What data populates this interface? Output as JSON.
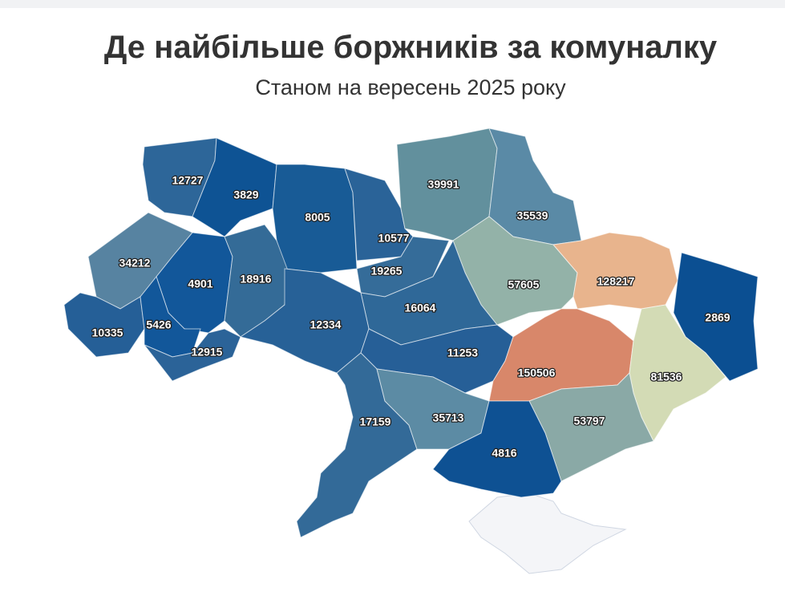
{
  "chart_data": {
    "type": "choropleth",
    "title": "Де найбільше боржників за комуналку",
    "subtitle": "Станом на вересень 2025 року",
    "regions": [
      {
        "value": 12727,
        "color": "#2d6699"
      },
      {
        "value": 3829,
        "color": "#0e5394"
      },
      {
        "value": 8005,
        "color": "#185b96"
      },
      {
        "value": 10577,
        "color": "#2a6398"
      },
      {
        "value": 39991,
        "color": "#62909d"
      },
      {
        "value": 35539,
        "color": "#5a8aa6"
      },
      {
        "value": 34212,
        "color": "#5783a1"
      },
      {
        "value": 4901,
        "color": "#12579a"
      },
      {
        "value": 18916,
        "color": "#346b97"
      },
      {
        "value": 19265,
        "color": "#356c99"
      },
      {
        "value": 57605,
        "color": "#93b2a8"
      },
      {
        "value": 128217,
        "color": "#e8b48d"
      },
      {
        "value": 16064,
        "color": "#2f6898"
      },
      {
        "value": 2869,
        "color": "#0b4f92"
      },
      {
        "value": 10335,
        "color": "#255f97"
      },
      {
        "value": 5426,
        "color": "#12579a"
      },
      {
        "value": 12915,
        "color": "#2b6398"
      },
      {
        "value": 12334,
        "color": "#276197"
      },
      {
        "value": 11253,
        "color": "#265f97"
      },
      {
        "value": 150506,
        "color": "#d8876a"
      },
      {
        "value": 81536,
        "color": "#d3dbb5"
      },
      {
        "value": 17159,
        "color": "#336a98"
      },
      {
        "value": 35713,
        "color": "#5c8ba4"
      },
      {
        "value": 53797,
        "color": "#8aa9a6"
      },
      {
        "value": 4816,
        "color": "#0e5193"
      }
    ]
  }
}
